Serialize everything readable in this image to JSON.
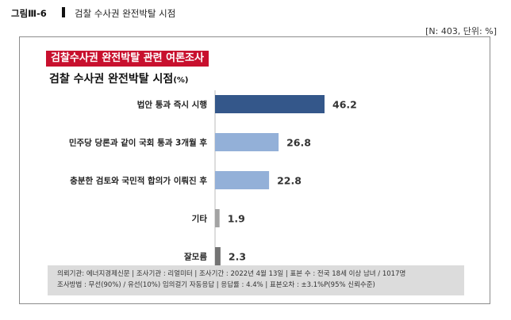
{
  "figure": {
    "label": "그림Ⅲ-6",
    "title": "검찰 수사권 완전박탈 시점",
    "meta": "[N: 403, 단위: %]"
  },
  "banner": "검찰수사권 완전박탈 관련 여론조사",
  "subtitle": {
    "main": "검찰 수사권 완전박탈 시점",
    "unit": "(%)"
  },
  "chart_data": {
    "type": "bar",
    "orientation": "horizontal",
    "categories": [
      "법안 통과 즉시 시행",
      "민주당 당론과 같이 국회 통과 3개월 후",
      "충분한 검토와 국민적 합의가 이뤄진 후",
      "기타",
      "잘모름"
    ],
    "values": [
      46.2,
      26.8,
      22.8,
      1.9,
      2.3
    ],
    "value_labels": [
      "46.2",
      "26.8",
      "22.8",
      "1.9",
      "2.3"
    ],
    "colors": [
      "#34578a",
      "#93b0d8",
      "#93b0d8",
      "#a3a3a3",
      "#747474"
    ],
    "xlim": [
      0,
      50
    ],
    "grid": false,
    "legend": "none"
  },
  "footer": {
    "line1": "의뢰기관: 에너지경제신문 | 조사기관 : 리얼미터 | 조사기간 : 2022년 4월 13일 | 표본 수 : 전국 18세 이상 남녀 / 1017명",
    "line2": "조사방법 : 무선(90%) / 유선(10%) 임의걸기 자동응답 | 응답률 : 4.4% | 표본오차 : ±3.1%P(95% 신뢰수준)"
  }
}
